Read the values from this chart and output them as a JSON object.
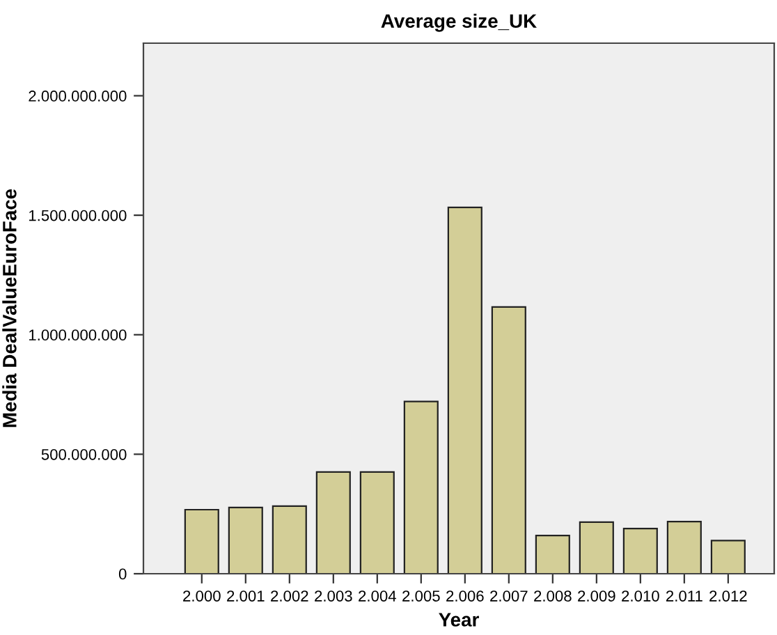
{
  "chart_data": {
    "type": "bar",
    "title": "Average size_UK",
    "xlabel": "Year",
    "ylabel": "Media DealValueEuroFace",
    "categories": [
      "2.000",
      "2.001",
      "2.002",
      "2.003",
      "2.004",
      "2.005",
      "2.006",
      "2.007",
      "2.008",
      "2.009",
      "2.010",
      "2.011",
      "2.012"
    ],
    "values": [
      268000000,
      277000000,
      283000000,
      426000000,
      426000000,
      721000000,
      1533000000,
      1116000000,
      160000000,
      216000000,
      189000000,
      218000000,
      139000000
    ],
    "color": "#d3ce97",
    "ylim": [
      0,
      2220000000
    ],
    "yticks": [
      {
        "value": 0,
        "label": "0"
      },
      {
        "value": 500000000,
        "label": "500.000.000"
      },
      {
        "value": 1000000000,
        "label": "1.000.000.000"
      },
      {
        "value": 1500000000,
        "label": "1.500.000.000"
      },
      {
        "value": 2000000000,
        "label": "2.000.000.000"
      }
    ],
    "grid": false,
    "legend": false
  }
}
